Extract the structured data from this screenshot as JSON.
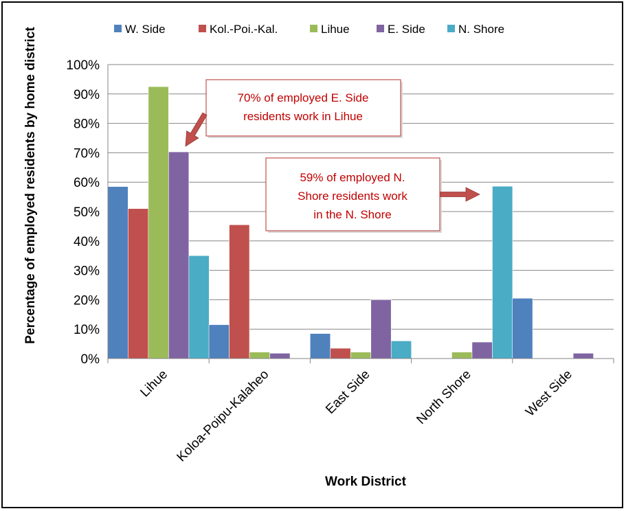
{
  "chart_data": {
    "type": "bar",
    "title": "",
    "xlabel": "Work District",
    "ylabel": "Percentage of employed residents by home district",
    "ylim": [
      0,
      100
    ],
    "y_ticks": [
      "0%",
      "10%",
      "20%",
      "30%",
      "40%",
      "50%",
      "60%",
      "70%",
      "80%",
      "90%",
      "100%"
    ],
    "grid": true,
    "legend_position": "top",
    "categories": [
      "Lihue",
      "Koloa-Poipu-Kalaheo",
      "East Side",
      "North Shore",
      "West Side"
    ],
    "series": [
      {
        "name": "W. Side",
        "color": "#4f81bd",
        "values": [
          58.5,
          11.5,
          8.5,
          0,
          20.5
        ]
      },
      {
        "name": "Kol.-Poi.-Kal.",
        "color": "#c0504d",
        "values": [
          51,
          45.5,
          3.5,
          0,
          0
        ]
      },
      {
        "name": "Lihue",
        "color": "#9bbb59",
        "values": [
          92.5,
          2.2,
          2.2,
          2.2,
          0
        ]
      },
      {
        "name": "E. Side",
        "color": "#8064a2",
        "values": [
          70.3,
          1.8,
          20,
          5.6,
          1.8
        ]
      },
      {
        "name": "N. Shore",
        "color": "#4bacc6",
        "values": [
          35,
          0,
          6,
          58.6,
          0
        ]
      }
    ],
    "annotations": [
      {
        "lines": [
          "70% of employed E. Side",
          "residents work in Lihue"
        ]
      },
      {
        "lines": [
          "59% of employed N.",
          "Shore residents work",
          "in the N. Shore"
        ]
      }
    ]
  }
}
